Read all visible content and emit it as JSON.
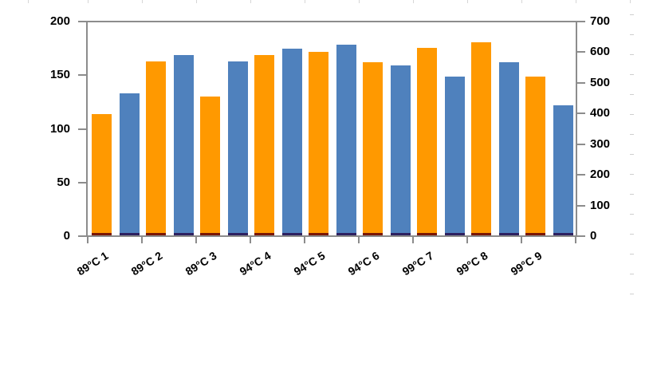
{
  "chart_data": {
    "type": "bar",
    "title": "",
    "legend": "none",
    "categories": [
      "89°C 1",
      "89°C 2",
      "89°C 3",
      "94°C 4",
      "94°C 5",
      "94°C 6",
      "99°C 7",
      "99°C 8",
      "99°C 9"
    ],
    "series": [
      {
        "name": "orange",
        "color": "#FF9900",
        "base_strip_color": "#7A1600",
        "axis": "left",
        "values": [
          113,
          162,
          129,
          168,
          171,
          161,
          175,
          180,
          148
        ]
      },
      {
        "name": "blue",
        "color": "#4F81BD",
        "base_strip_color": "#2D2060",
        "axis": "right",
        "values": [
          132,
          168,
          162,
          174,
          178,
          158,
          148,
          161,
          121
        ]
      }
    ],
    "values_scale_note": "bar values read on the left axis scale",
    "left_axis": {
      "min": 0,
      "max": 200,
      "tick_labels_top_to_bottom": [
        "200",
        "150",
        "100",
        "50",
        "0"
      ]
    },
    "right_axis": {
      "min": 0,
      "max": 700,
      "tick_labels_top_to_bottom": [
        "700",
        "600",
        "500",
        "400",
        "300",
        "200",
        "100",
        "0"
      ]
    },
    "grid": "top border only",
    "axis_color": "#8c8c8c",
    "label_color": "#000000",
    "background": "#ffffff"
  }
}
